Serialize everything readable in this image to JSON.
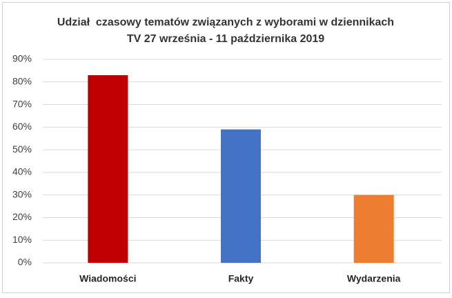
{
  "chart_data": {
    "type": "bar",
    "title": [
      "Udział  czasowy tematów związanych z wyborami w dziennikach",
      "TV 27 września - 11 października 2019"
    ],
    "categories": [
      "Wiadomości",
      "Fakty",
      "Wydarzenia"
    ],
    "values": [
      83,
      59,
      30
    ],
    "colors": [
      "#c00000",
      "#4472c4",
      "#ed7d31"
    ],
    "ylim": [
      0,
      90
    ],
    "yticks": [
      {
        "value": 0,
        "label": "0%"
      },
      {
        "value": 10,
        "label": "10%"
      },
      {
        "value": 20,
        "label": "20%"
      },
      {
        "value": 30,
        "label": "30%"
      },
      {
        "value": 40,
        "label": "40%"
      },
      {
        "value": 50,
        "label": "50%"
      },
      {
        "value": 60,
        "label": "60%"
      },
      {
        "value": 70,
        "label": "70%"
      },
      {
        "value": 80,
        "label": "80%"
      },
      {
        "value": 90,
        "label": "90%"
      }
    ],
    "grid": true
  }
}
